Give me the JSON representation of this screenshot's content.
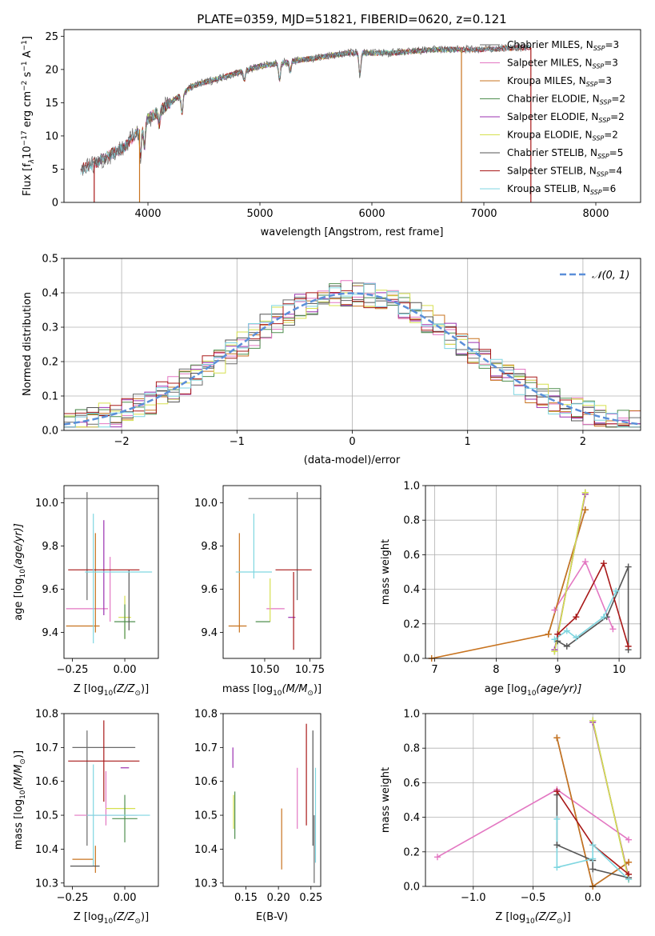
{
  "figure_title": "PLATE=0359, MJD=51821, FIBERID=0620, z=0.121",
  "colors": {
    "Chabrier MILES": "#6a6a6a",
    "Salpeter MILES": "#e377c2",
    "Kroupa MILES": "#c8731f",
    "Chabrier ELODIE": "#4f8f4f",
    "Salpeter ELODIE": "#9b30b0",
    "Kroupa ELODIE": "#d6e04f",
    "Chabrier STELIB": "#555555",
    "Salpeter STELIB": "#a81818",
    "Kroupa STELIB": "#7fd6e0",
    "normal_curve": "#5b8fd9",
    "grid": "#b0b0b0"
  },
  "chart_data": [
    {
      "type": "line",
      "panel": "spectrum",
      "xlabel": "wavelength [Angstrom, rest frame]",
      "ylabel": "Flux [f",
      "ylabel_sub": "λ",
      "ylabel_rest": "10",
      "ylabel_exp1": "−17",
      "ylabel_mid": " erg cm",
      "ylabel_exp2": "−2",
      "ylabel_mid2": " s",
      "ylabel_exp3": "−1",
      "ylabel_end": " A",
      "ylabel_exp4": "−1",
      "ylabel_close": "]",
      "xlim": [
        3250,
        8400
      ],
      "ylim": [
        0,
        26
      ],
      "xticks": [
        "4000",
        "5000",
        "6000",
        "7000",
        "8000"
      ],
      "yticks": [
        "0",
        "5",
        "10",
        "15",
        "20",
        "25"
      ],
      "grid": false,
      "legend_position": "right",
      "legend": [
        {
          "name": "Chabrier MILES",
          "nssp": "3"
        },
        {
          "name": "Salpeter MILES",
          "nssp": "3"
        },
        {
          "name": "Kroupa MILES",
          "nssp": "3"
        },
        {
          "name": "Chabrier ELODIE",
          "nssp": "2"
        },
        {
          "name": "Salpeter ELODIE",
          "nssp": "2"
        },
        {
          "name": "Kroupa ELODIE",
          "nssp": "2"
        },
        {
          "name": "Chabrier STELIB",
          "nssp": "5"
        },
        {
          "name": "Salpeter STELIB",
          "nssp": "4"
        },
        {
          "name": "Kroupa STELIB",
          "nssp": "6"
        }
      ],
      "nssp_label": "N",
      "nssp_sub": "SSP",
      "continuum": {
        "x": [
          3400,
          3600,
          3800,
          4000,
          4200,
          4400,
          4600,
          4800,
          5000,
          5200,
          5400,
          5600,
          5800,
          6000,
          6200,
          6400,
          6600,
          6800,
          7000,
          7200,
          7400
        ],
        "y": [
          5,
          6.5,
          8.5,
          12.5,
          15,
          17.5,
          18.5,
          19.5,
          20.5,
          21,
          21.5,
          22,
          22.5,
          22.5,
          22.5,
          22.8,
          23,
          23,
          23,
          23.2,
          23.3
        ]
      },
      "absorption_features": [
        {
          "x": 3933,
          "depth": 4
        },
        {
          "x": 3968,
          "depth": 3.5
        },
        {
          "x": 4101,
          "depth": 2
        },
        {
          "x": 4304,
          "depth": 3
        },
        {
          "x": 4861,
          "depth": 1.5
        },
        {
          "x": 5175,
          "depth": 2.5
        },
        {
          "x": 5270,
          "depth": 1.5
        },
        {
          "x": 5893,
          "depth": 3.5
        }
      ],
      "dropout_lines": [
        {
          "model": "Kroupa MILES",
          "x": 3925
        },
        {
          "model": "Salpeter STELIB",
          "x": 3520
        },
        {
          "model": "Kroupa MILES",
          "x": 6800
        },
        {
          "model": "Salpeter STELIB",
          "x": 7420
        }
      ]
    },
    {
      "type": "histogram",
      "panel": "residuals",
      "xlabel": "(data-model)/error",
      "ylabel": "Normed distribution",
      "xlim": [
        -2.5,
        2.5
      ],
      "ylim": [
        0,
        0.5
      ],
      "xticks": [
        "−2",
        "−1",
        "0",
        "1",
        "2"
      ],
      "yticks": [
        "0.0",
        "0.1",
        "0.2",
        "0.3",
        "0.4",
        "0.5"
      ],
      "grid": true,
      "bin_width": 0.1,
      "reference_curve": {
        "label": "𝒩(0, 1)",
        "mean": 0,
        "sigma": 1
      }
    },
    {
      "type": "scatter",
      "panel": "age_vs_Z",
      "xlabel": "Z [log",
      "xlabel_sub": "10",
      "xlabel_rest": "(Z/Z",
      "xlabel_sun": "⊙",
      "xlabel_close": ")]",
      "ylabel": "age  [log",
      "ylabel_sub": "10",
      "ylabel_rest": "(age/yr)]",
      "xlim": [
        -0.29,
        0.16
      ],
      "ylim": [
        9.28,
        10.08
      ],
      "xticks": [
        "−0.25",
        "0.00"
      ],
      "yticks": [
        "9.4",
        "9.6",
        "9.8",
        "10.0"
      ],
      "grid": false,
      "points": [
        {
          "model": "Chabrier MILES",
          "x": -0.06,
          "xerr": 0.23,
          "y": 10.02,
          "yerr": 0
        },
        {
          "model": "Chabrier MILES",
          "x": -0.18,
          "xerr": 0,
          "y": 9.8,
          "yerr": 0.25
        },
        {
          "model": "Salpeter MILES",
          "x": -0.18,
          "xerr": 0.1,
          "y": 9.51,
          "yerr": 0
        },
        {
          "model": "Salpeter MILES",
          "x": -0.07,
          "xerr": 0,
          "y": 9.6,
          "yerr": 0.15
        },
        {
          "model": "Kroupa MILES",
          "x": -0.14,
          "xerr": 0,
          "y": 9.63,
          "yerr": 0.23
        },
        {
          "model": "Kroupa MILES",
          "x": -0.2,
          "xerr": 0.08,
          "y": 9.43,
          "yerr": 0
        },
        {
          "model": "Salpeter ELODIE",
          "x": -0.1,
          "xerr": 0,
          "y": 9.7,
          "yerr": 0.22
        },
        {
          "model": "Kroupa ELODIE",
          "x": 0.0,
          "xerr": 0.03,
          "y": 9.47,
          "yerr": 0.1
        },
        {
          "model": "Chabrier ELODIE",
          "x": 0.0,
          "xerr": 0.05,
          "y": 9.45,
          "yerr": 0.08
        },
        {
          "model": "Chabrier STELIB",
          "x": 0.02,
          "xerr": 0,
          "y": 9.55,
          "yerr": 0.14
        },
        {
          "model": "Salpeter STELIB",
          "x": -0.1,
          "xerr": 0.17,
          "y": 9.69,
          "yerr": 0
        },
        {
          "model": "Kroupa STELIB",
          "x": -0.03,
          "xerr": 0.16,
          "y": 9.68,
          "yerr": 0
        },
        {
          "model": "Kroupa STELIB",
          "x": -0.15,
          "xerr": 0,
          "y": 9.65,
          "yerr": 0.3
        }
      ]
    },
    {
      "type": "scatter",
      "panel": "age_vs_mass",
      "xlabel": "mass [log",
      "xlabel_sub": "10",
      "xlabel_rest": "(M/M",
      "xlabel_sun": "⊙",
      "xlabel_close": ")]",
      "xlim": [
        10.27,
        10.81
      ],
      "ylim": [
        9.28,
        10.08
      ],
      "xticks": [
        "10.50",
        "10.75"
      ],
      "yticks": [
        "9.4",
        "9.6",
        "9.8",
        "10.0"
      ],
      "grid": false,
      "points": [
        {
          "model": "Chabrier MILES",
          "x": 10.61,
          "xerr": 0.2,
          "y": 10.02,
          "yerr": 0
        },
        {
          "model": "Chabrier MILES",
          "x": 10.68,
          "xerr": 0,
          "y": 9.8,
          "yerr": 0.25
        },
        {
          "model": "Salpeter MILES",
          "x": 10.56,
          "xerr": 0.05,
          "y": 9.51,
          "yerr": 0
        },
        {
          "model": "Kroupa MILES",
          "x": 10.36,
          "xerr": 0,
          "y": 9.63,
          "yerr": 0.23
        },
        {
          "model": "Kroupa MILES",
          "x": 10.35,
          "xerr": 0.05,
          "y": 9.43,
          "yerr": 0
        },
        {
          "model": "Salpeter ELODIE",
          "x": 10.65,
          "xerr": 0.02,
          "y": 9.47,
          "yerr": 0
        },
        {
          "model": "Kroupa ELODIE",
          "x": 10.53,
          "xerr": 0,
          "y": 9.55,
          "yerr": 0.1
        },
        {
          "model": "Chabrier ELODIE",
          "x": 10.49,
          "xerr": 0.04,
          "y": 9.45,
          "yerr": 0
        },
        {
          "model": "Salpeter STELIB",
          "x": 10.66,
          "xerr": 0.1,
          "y": 9.69,
          "yerr": 0
        },
        {
          "model": "Salpeter STELIB",
          "x": 10.66,
          "xerr": 0,
          "y": 9.5,
          "yerr": 0.18
        },
        {
          "model": "Kroupa STELIB",
          "x": 10.44,
          "xerr": 0.1,
          "y": 9.68,
          "yerr": 0
        },
        {
          "model": "Kroupa STELIB",
          "x": 10.44,
          "xerr": 0,
          "y": 9.8,
          "yerr": 0.15
        }
      ]
    },
    {
      "type": "line",
      "panel": "weight_vs_age",
      "xlabel": "age  [log",
      "xlabel_sub": "10",
      "xlabel_rest": "(age/yr)]",
      "ylabel": "mass weight",
      "xlim": [
        6.85,
        10.35
      ],
      "ylim": [
        0,
        1
      ],
      "xticks": [
        "7",
        "8",
        "9",
        "10"
      ],
      "yticks": [
        "0.0",
        "0.2",
        "0.4",
        "0.6",
        "0.8",
        "1.0"
      ],
      "grid": true,
      "series": [
        {
          "model": "Chabrier MILES",
          "x": [
            8.85,
            9.45,
            9.45
          ],
          "y": [
            0.14,
            0.86,
            0.86
          ]
        },
        {
          "model": "Salpeter MILES",
          "x": [
            8.95,
            9.45,
            9.9
          ],
          "y": [
            0.28,
            0.56,
            0.17
          ]
        },
        {
          "model": "Kroupa MILES",
          "x": [
            6.95,
            8.85,
            9.45
          ],
          "y": [
            0.0,
            0.14,
            0.86
          ]
        },
        {
          "model": "Chabrier ELODIE",
          "x": [
            8.95,
            9.45
          ],
          "y": [
            0.04,
            0.96
          ]
        },
        {
          "model": "Salpeter ELODIE",
          "x": [
            8.95,
            9.45
          ],
          "y": [
            0.05,
            0.95
          ]
        },
        {
          "model": "Kroupa ELODIE",
          "x": [
            8.95,
            9.45
          ],
          "y": [
            0.04,
            0.96
          ]
        },
        {
          "model": "Chabrier STELIB",
          "x": [
            9.0,
            9.15,
            9.8,
            10.15,
            10.15
          ],
          "y": [
            0.1,
            0.07,
            0.24,
            0.53,
            0.05
          ]
        },
        {
          "model": "Salpeter STELIB",
          "x": [
            9.0,
            9.3,
            9.75,
            10.15
          ],
          "y": [
            0.14,
            0.24,
            0.55,
            0.07
          ]
        },
        {
          "model": "Kroupa STELIB",
          "x": [
            8.95,
            9.15,
            9.3,
            9.75,
            9.95
          ],
          "y": [
            0.11,
            0.16,
            0.12,
            0.24,
            0.39
          ]
        }
      ]
    },
    {
      "type": "scatter",
      "panel": "mass_vs_Z",
      "xlabel": "Z [log",
      "xlabel_sub": "10",
      "xlabel_rest": "(Z/Z",
      "xlabel_sun": "⊙",
      "xlabel_close": ")]",
      "ylabel": "mass [log",
      "ylabel_sub": "10",
      "ylabel_rest": "(M/M",
      "ylabel_sun": "⊙",
      "ylabel_close": ")]",
      "xlim": [
        -0.29,
        0.16
      ],
      "ylim": [
        10.29,
        10.8
      ],
      "xticks": [
        "−0.25",
        "0.00"
      ],
      "yticks": [
        "10.3",
        "10.4",
        "10.5",
        "10.6",
        "10.7",
        "10.8"
      ],
      "grid": false,
      "points": [
        {
          "model": "Chabrier MILES",
          "x": -0.1,
          "xerr": 0.15,
          "y": 10.7,
          "yerr": 0
        },
        {
          "model": "Chabrier MILES",
          "x": -0.18,
          "xerr": 0,
          "y": 10.58,
          "yerr": 0.17
        },
        {
          "model": "Salpeter MILES",
          "x": -0.09,
          "xerr": 0.15,
          "y": 10.5,
          "yerr": 0
        },
        {
          "model": "Salpeter MILES",
          "x": -0.09,
          "xerr": 0,
          "y": 10.55,
          "yerr": 0.08
        },
        {
          "model": "Kroupa MILES",
          "x": -0.2,
          "xerr": 0.05,
          "y": 10.37,
          "yerr": 0
        },
        {
          "model": "Kroupa MILES",
          "x": -0.14,
          "xerr": 0,
          "y": 10.37,
          "yerr": 0.04
        },
        {
          "model": "Salpeter ELODIE",
          "x": 0.0,
          "xerr": 0.02,
          "y": 10.64,
          "yerr": 0
        },
        {
          "model": "Kroupa ELODIE",
          "x": -0.02,
          "xerr": 0.07,
          "y": 10.52,
          "yerr": 0
        },
        {
          "model": "Chabrier ELODIE",
          "x": 0.0,
          "xerr": 0.06,
          "y": 10.49,
          "yerr": 0.07
        },
        {
          "model": "Salpeter STELIB",
          "x": -0.1,
          "xerr": 0.17,
          "y": 10.66,
          "yerr": 0.12
        },
        {
          "model": "Kroupa STELIB",
          "x": -0.03,
          "xerr": 0.15,
          "y": 10.5,
          "yerr": 0
        },
        {
          "model": "Kroupa STELIB",
          "x": -0.15,
          "xerr": 0,
          "y": 10.5,
          "yerr": 0.15
        },
        {
          "model": "Chabrier STELIB",
          "x": -0.19,
          "xerr": 0.07,
          "y": 10.35,
          "yerr": 0
        }
      ]
    },
    {
      "type": "scatter",
      "panel": "mass_vs_ebv",
      "xlabel": "E(B-V)",
      "xlim": [
        0.115,
        0.265
      ],
      "ylim": [
        10.29,
        10.8
      ],
      "xticks": [
        "0.15",
        "0.20",
        "0.25"
      ],
      "yticks": [
        "10.3",
        "10.4",
        "10.5",
        "10.6",
        "10.7",
        "10.8"
      ],
      "grid": false,
      "points": [
        {
          "model": "Salpeter ELODIE",
          "x": 0.13,
          "y": 10.67,
          "yerr": 0.03
        },
        {
          "model": "Kroupa ELODIE",
          "x": 0.131,
          "y": 10.51,
          "yerr": 0.05
        },
        {
          "model": "Chabrier ELODIE",
          "x": 0.133,
          "y": 10.5,
          "yerr": 0.07
        },
        {
          "model": "Kroupa MILES",
          "x": 0.205,
          "y": 10.43,
          "yerr": 0.09
        },
        {
          "model": "Salpeter MILES",
          "x": 0.229,
          "y": 10.55,
          "yerr": 0.09
        },
        {
          "model": "Salpeter STELIB",
          "x": 0.243,
          "y": 10.62,
          "yerr": 0.15
        },
        {
          "model": "Chabrier STELIB",
          "x": 0.253,
          "y": 10.58,
          "yerr": 0.17
        },
        {
          "model": "Kroupa STELIB",
          "x": 0.257,
          "y": 10.5,
          "yerr": 0.14
        },
        {
          "model": "Chabrier MILES",
          "x": 0.255,
          "y": 10.4,
          "yerr": 0.1
        }
      ]
    },
    {
      "type": "line",
      "panel": "weight_vs_Z",
      "xlabel": "Z [log",
      "xlabel_sub": "10",
      "xlabel_rest": "(Z/Z",
      "xlabel_sun": "⊙",
      "xlabel_close": ")]",
      "ylabel": "mass weight",
      "xlim": [
        -1.4,
        0.4
      ],
      "ylim": [
        0,
        1
      ],
      "xticks": [
        "−1.0",
        "−0.5",
        "0.0"
      ],
      "yticks": [
        "0.0",
        "0.2",
        "0.4",
        "0.6",
        "0.8",
        "1.0"
      ],
      "grid": true,
      "series": [
        {
          "model": "Chabrier MILES",
          "x": [
            -0.3,
            0.0,
            0.3
          ],
          "y": [
            0.86,
            0.0,
            0.14
          ]
        },
        {
          "model": "Salpeter MILES",
          "x": [
            -1.3,
            -0.3,
            0.3
          ],
          "y": [
            0.17,
            0.56,
            0.27
          ]
        },
        {
          "model": "Kroupa MILES",
          "x": [
            -0.3,
            0.0,
            0.3
          ],
          "y": [
            0.86,
            0.0,
            0.14
          ]
        },
        {
          "model": "Chabrier ELODIE",
          "x": [
            0.0,
            0.3
          ],
          "y": [
            0.96,
            0.04
          ]
        },
        {
          "model": "Salpeter ELODIE",
          "x": [
            0.0,
            0.3
          ],
          "y": [
            0.95,
            0.05
          ]
        },
        {
          "model": "Kroupa ELODIE",
          "x": [
            0.0,
            0.3
          ],
          "y": [
            0.96,
            0.04
          ]
        },
        {
          "model": "Chabrier STELIB",
          "x": [
            -0.3,
            -0.3,
            0.0,
            0.0,
            0.3
          ],
          "y": [
            0.53,
            0.24,
            0.15,
            0.1,
            0.05
          ]
        },
        {
          "model": "Salpeter STELIB",
          "x": [
            -0.3,
            0.0,
            0.3
          ],
          "y": [
            0.55,
            0.24,
            0.07
          ]
        },
        {
          "model": "Kroupa STELIB",
          "x": [
            -0.3,
            -0.3,
            0.0,
            0.0,
            0.3
          ],
          "y": [
            0.39,
            0.11,
            0.16,
            0.24,
            0.04
          ]
        }
      ]
    }
  ]
}
